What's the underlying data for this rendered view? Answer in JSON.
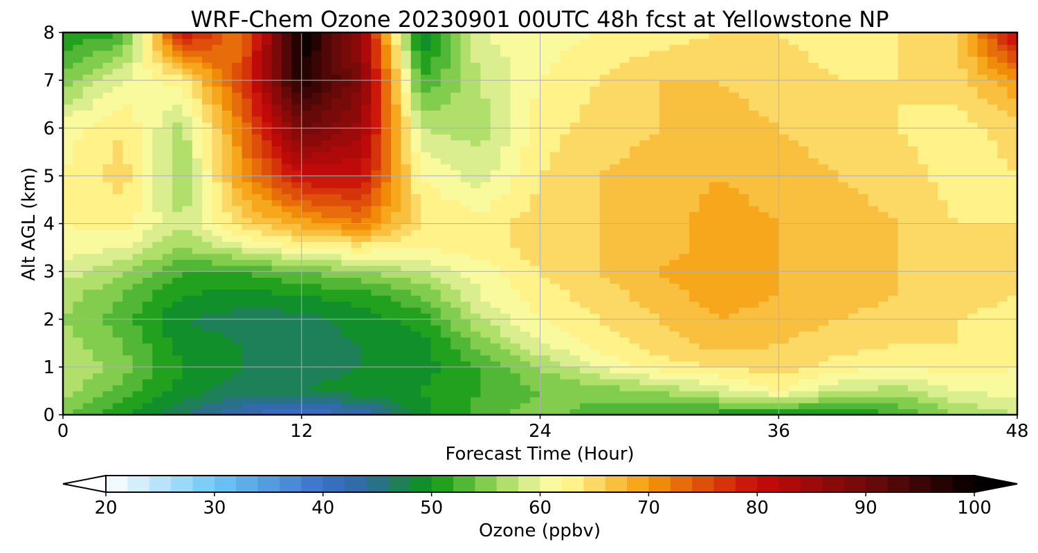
{
  "chart_data": {
    "type": "heatmap",
    "title": "WRF-Chem Ozone  20230901 00UTC 48h fcst at Yellowstone NP",
    "xlabel": "Forecast Time (Hour)",
    "ylabel": "Alt AGL (km)",
    "x_ticks": [
      "0",
      "12",
      "24",
      "36",
      "48"
    ],
    "y_ticks": [
      "0",
      "1",
      "2",
      "3",
      "4",
      "5",
      "6",
      "7",
      "8"
    ],
    "xlim": [
      0,
      48
    ],
    "ylim": [
      0,
      8
    ],
    "grid": true,
    "x_hours": [
      0,
      3,
      6,
      9,
      12,
      15,
      18,
      21,
      24,
      27,
      30,
      33,
      36,
      39,
      42,
      45,
      48
    ],
    "y_km": [
      0,
      0.5,
      1,
      1.5,
      2,
      2.5,
      3,
      3.5,
      4,
      5,
      6,
      7,
      8
    ],
    "ozone_ppbv": [
      [
        54,
        50,
        46,
        42,
        40,
        42,
        49,
        53,
        55,
        53,
        52,
        51,
        50,
        50,
        52,
        56,
        58
      ],
      [
        57,
        53,
        49,
        47,
        48,
        49,
        50,
        52,
        54,
        55,
        56,
        59,
        62,
        58,
        57,
        60,
        61
      ],
      [
        58,
        55,
        50,
        48,
        47,
        48,
        49,
        52,
        56,
        60,
        63,
        64,
        65,
        63,
        62,
        63,
        62
      ],
      [
        57,
        54,
        49,
        48,
        47,
        48,
        49,
        55,
        60,
        63,
        65,
        67,
        66,
        65,
        64,
        64,
        63
      ],
      [
        56,
        53,
        48,
        47,
        47,
        49,
        51,
        58,
        62,
        64,
        66,
        68,
        67,
        66,
        65,
        64,
        63
      ],
      [
        57,
        54,
        50,
        49,
        50,
        51,
        54,
        60,
        63,
        65,
        67,
        69,
        68,
        67,
        66,
        65,
        64
      ],
      [
        59,
        56,
        52,
        52,
        54,
        56,
        58,
        61,
        64,
        66,
        68,
        70,
        68,
        67,
        66,
        65,
        64
      ],
      [
        61,
        60,
        56,
        59,
        62,
        63,
        62,
        63,
        65,
        66,
        67,
        69,
        68,
        67,
        66,
        65,
        64
      ],
      [
        62,
        63,
        58,
        65,
        69,
        72,
        64,
        63,
        65,
        66,
        67,
        69,
        68,
        67,
        66,
        64,
        64
      ],
      [
        62,
        65,
        56,
        70,
        80,
        80,
        62,
        59,
        64,
        66,
        67,
        68,
        67,
        66,
        65,
        63,
        64
      ],
      [
        61,
        64,
        57,
        72,
        90,
        85,
        58,
        57,
        63,
        65,
        66,
        67,
        66,
        65,
        64,
        63,
        65
      ],
      [
        55,
        60,
        63,
        76,
        98,
        88,
        52,
        58,
        62,
        64,
        66,
        66,
        65,
        64,
        64,
        65,
        70
      ],
      [
        50,
        52,
        80,
        72,
        100,
        85,
        47,
        60,
        61,
        62,
        63,
        64,
        64,
        63,
        64,
        66,
        82
      ]
    ],
    "colorbar": {
      "label": "Ozone  (ppbv)",
      "ticks": [
        "20",
        "30",
        "40",
        "50",
        "60",
        "70",
        "80",
        "90",
        "100"
      ],
      "min": 20,
      "max": 100,
      "step": 2,
      "extend": "both"
    },
    "colormap": [
      [
        20,
        "#ffffff"
      ],
      [
        30,
        "#6ec8f5"
      ],
      [
        40,
        "#3a6fc8"
      ],
      [
        44,
        "#2f6aa0"
      ],
      [
        50,
        "#0a9612"
      ],
      [
        56,
        "#9ad85a"
      ],
      [
        60,
        "#f0f5a0"
      ],
      [
        62,
        "#ffff9a"
      ],
      [
        70,
        "#f59a0a"
      ],
      [
        74,
        "#e25d0a"
      ],
      [
        80,
        "#c80a0a"
      ],
      [
        90,
        "#700a0a"
      ],
      [
        100,
        "#050000"
      ]
    ]
  }
}
